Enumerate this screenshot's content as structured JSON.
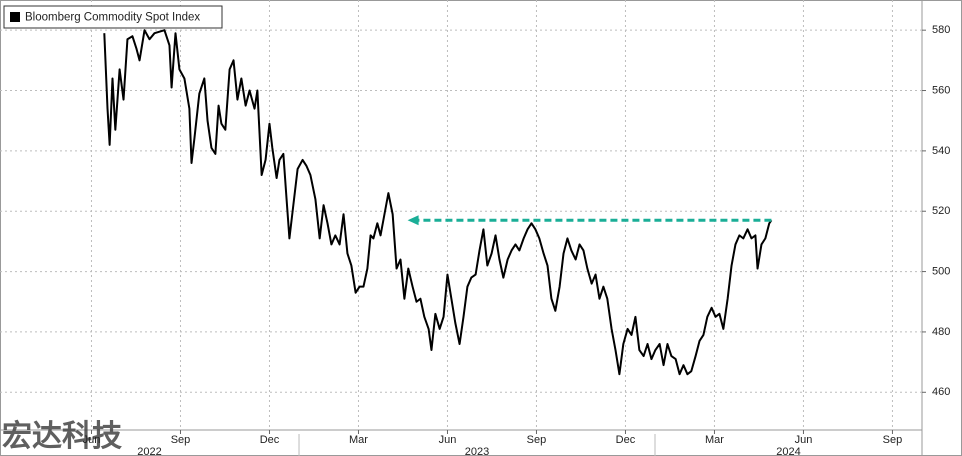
{
  "chart_data": {
    "type": "line",
    "watermark": "宏达科技",
    "x": [
      2022.453,
      2022.462,
      2022.468,
      2022.476,
      2022.484,
      2022.496,
      2022.507,
      2022.518,
      2022.532,
      2022.543,
      2022.552,
      2022.566,
      2022.58,
      2022.594,
      2022.622,
      2022.636,
      2022.642,
      2022.653,
      2022.664,
      2022.678,
      2022.692,
      2022.698,
      2022.706,
      2022.72,
      2022.734,
      2022.743,
      2022.754,
      2022.765,
      2022.774,
      2022.782,
      2022.793,
      2022.805,
      2022.816,
      2022.827,
      2022.838,
      2022.85,
      2022.861,
      2022.875,
      2022.883,
      2022.895,
      2022.906,
      2022.917,
      2022.925,
      2022.937,
      2022.945,
      2022.956,
      2022.965,
      2022.973,
      2022.984,
      2022.996,
      2023.01,
      2023.021,
      2023.032,
      2023.046,
      2023.058,
      2023.069,
      2023.08,
      2023.091,
      2023.102,
      2023.114,
      2023.125,
      2023.136,
      2023.147,
      2023.159,
      2023.17,
      2023.181,
      2023.192,
      2023.201,
      2023.209,
      2023.22,
      2023.229,
      2023.24,
      2023.251,
      2023.263,
      2023.274,
      2023.285,
      2023.296,
      2023.307,
      2023.319,
      2023.33,
      2023.341,
      2023.352,
      2023.364,
      2023.372,
      2023.383,
      2023.395,
      2023.406,
      2023.417,
      2023.428,
      2023.439,
      2023.451,
      2023.462,
      2023.473,
      2023.484,
      2023.496,
      2023.507,
      2023.518,
      2023.529,
      2023.541,
      2023.552,
      2023.563,
      2023.574,
      2023.586,
      2023.597,
      2023.608,
      2023.619,
      2023.631,
      2023.642,
      2023.653,
      2023.664,
      2023.675,
      2023.687,
      2023.698,
      2023.709,
      2023.72,
      2023.732,
      2023.743,
      2023.754,
      2023.765,
      2023.777,
      2023.788,
      2023.799,
      2023.81,
      2023.822,
      2023.833,
      2023.844,
      2023.855,
      2023.866,
      2023.878,
      2023.889,
      2023.9,
      2023.911,
      2023.923,
      2023.934,
      2023.945,
      2023.956,
      2023.968,
      2023.979,
      2023.99,
      2024.001,
      2024.013,
      2024.024,
      2024.035,
      2024.046,
      2024.058,
      2024.069,
      2024.08,
      2024.091,
      2024.102,
      2024.114,
      2024.125,
      2024.136,
      2024.147,
      2024.159,
      2024.17,
      2024.181,
      2024.192,
      2024.204,
      2024.215,
      2024.226,
      2024.237,
      2024.248,
      2024.26,
      2024.271,
      2024.282,
      2024.288,
      2024.299,
      2024.31,
      2024.321,
      2024.327
    ],
    "series": [
      {
        "name": "Bloomberg Commodity Spot Index",
        "color": "#000000",
        "values": [
          579,
          554,
          542,
          564,
          547,
          567,
          557,
          577,
          578,
          574,
          570,
          580,
          577,
          579,
          580,
          575,
          561,
          579,
          567,
          564,
          554,
          536,
          544,
          559,
          564,
          550,
          541,
          539,
          555,
          549,
          547,
          567,
          570,
          557,
          564,
          555,
          560,
          554,
          560,
          532,
          537,
          549,
          541,
          531,
          537,
          539,
          524,
          511,
          522,
          534,
          537,
          535,
          532,
          524,
          511,
          522,
          516,
          509,
          512,
          509,
          519,
          506,
          502,
          493,
          495,
          495,
          501,
          512,
          511,
          516,
          512,
          519,
          526,
          519,
          501,
          504,
          491,
          501,
          495,
          490,
          491,
          485,
          481,
          474,
          486,
          481,
          485,
          499,
          491,
          483,
          476,
          485,
          495,
          498,
          499,
          507,
          514,
          502,
          506,
          512,
          504,
          498,
          504,
          507,
          509,
          507,
          511,
          514,
          516,
          514,
          511,
          506,
          502,
          491,
          487,
          495,
          506,
          511,
          507,
          504,
          509,
          507,
          501,
          496,
          499,
          491,
          495,
          491,
          481,
          474,
          466,
          476,
          481,
          479,
          485,
          474,
          472,
          476,
          471,
          474,
          476,
          469,
          476,
          472,
          471,
          466,
          469,
          466,
          467,
          472,
          477,
          479,
          485,
          488,
          485,
          486,
          481,
          491,
          502,
          509,
          512,
          511,
          514,
          511,
          512,
          501,
          509,
          511,
          516,
          517
        ]
      }
    ],
    "annotation_arrow": {
      "value": 517,
      "from": 2024.327,
      "to": 2023.305,
      "color": "#1aae97"
    },
    "xlim": [
      2022.16,
      2024.75
    ],
    "xticks": [
      {
        "value": 2022.417,
        "label": "Jun"
      },
      {
        "value": 2022.667,
        "label": "Sep"
      },
      {
        "value": 2022.917,
        "label": "Dec"
      },
      {
        "value": 2023.167,
        "label": "Mar"
      },
      {
        "value": 2023.417,
        "label": "Jun"
      },
      {
        "value": 2023.667,
        "label": "Sep"
      },
      {
        "value": 2023.917,
        "label": "Dec"
      },
      {
        "value": 2024.167,
        "label": "Mar"
      },
      {
        "value": 2024.417,
        "label": "Jun"
      },
      {
        "value": 2024.667,
        "label": "Sep"
      }
    ],
    "year_labels": [
      2022,
      2023,
      2024
    ],
    "ylim": [
      447.5,
      590
    ],
    "yticks": [
      460,
      480,
      500,
      520,
      540,
      560,
      580
    ],
    "grid": true
  }
}
